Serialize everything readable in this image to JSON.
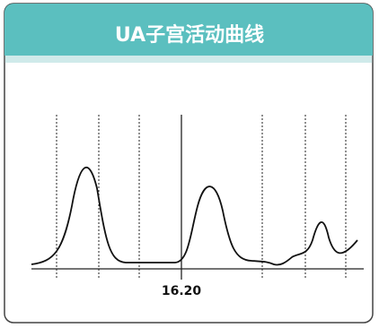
{
  "header": {
    "title": "UA子宫活动曲线"
  },
  "marker": {
    "label": "16.20"
  }
}
